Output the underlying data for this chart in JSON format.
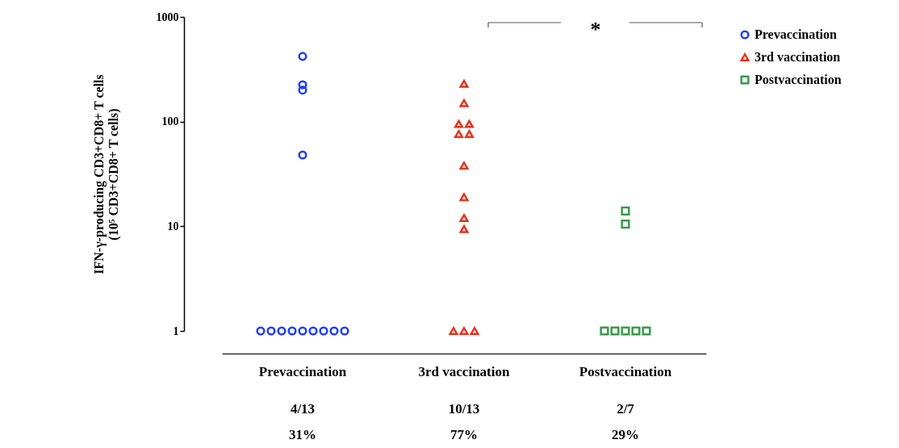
{
  "chart_data": {
    "type": "scatter",
    "ylabel": "IFN-γ-producing CD3+CD8+ T cells\n(10⁵ CD3+CD8+ T cells)",
    "categories": [
      "Prevaccination",
      "3rd vaccination",
      "Postvaccination"
    ],
    "log": true,
    "ylim": [
      1,
      1000
    ],
    "yticks": [
      1,
      10,
      100,
      1000
    ],
    "grid": false,
    "legend": "top right",
    "series": [
      {
        "name": "Prevaccination",
        "color": "#1f3cff",
        "marker": "circle",
        "x": [
          "Prevaccination",
          "Prevaccination",
          "Prevaccination",
          "Prevaccination",
          "Prevaccination",
          "Prevaccination",
          "Prevaccination",
          "Prevaccination",
          "Prevaccination",
          "Prevaccination",
          "Prevaccination",
          "Prevaccination",
          "Prevaccination"
        ],
        "values": [
          420,
          200,
          225,
          48,
          1,
          1,
          1,
          1,
          1,
          1,
          1,
          1,
          1
        ]
      },
      {
        "name": "3rd vaccination",
        "color": "#e8321e",
        "marker": "triangle",
        "x": [
          "3rd vaccination",
          "3rd vaccination",
          "3rd vaccination",
          "3rd vaccination",
          "3rd vaccination",
          "3rd vaccination",
          "3rd vaccination",
          "3rd vaccination",
          "3rd vaccination",
          "3rd vaccination",
          "3rd vaccination",
          "3rd vaccination",
          "3rd vaccination"
        ],
        "values": [
          230,
          150,
          95,
          95,
          76,
          76,
          38,
          19,
          12,
          9.4,
          1,
          1,
          1
        ]
      },
      {
        "name": "Postvaccination",
        "color": "#3a9a4a",
        "marker": "square",
        "x": [
          "Postvaccination",
          "Postvaccination",
          "Postvaccination",
          "Postvaccination",
          "Postvaccination",
          "Postvaccination",
          "Postvaccination"
        ],
        "values": [
          14,
          10.5,
          1,
          1,
          1,
          1,
          1
        ]
      }
    ],
    "annotations": [
      "4/13\n31%",
      "10/13\n77%",
      "2/7\n29%",
      "*"
    ]
  }
}
